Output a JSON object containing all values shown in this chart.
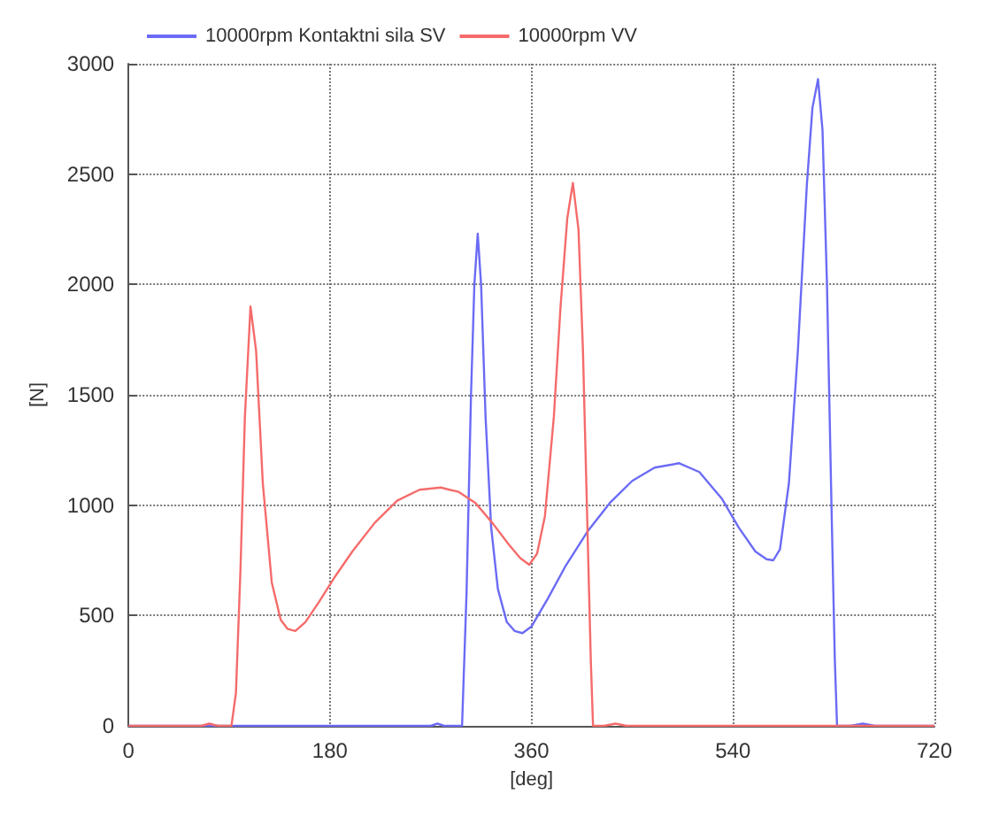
{
  "chart_data": {
    "type": "line",
    "xlabel": "[deg]",
    "ylabel": "[N]",
    "xlim": [
      0,
      720
    ],
    "xticks": [
      0,
      180,
      360,
      540,
      720
    ],
    "ylim": [
      0,
      3000
    ],
    "yticks": [
      0,
      500,
      1000,
      1500,
      2000,
      2500,
      3000
    ],
    "grid": true,
    "legend": "top left",
    "marker": "none",
    "line_style": "solid",
    "series": [
      {
        "name": "10000rpm Kontaktni sila SV",
        "color": "#6b6bf5",
        "x": [
          0,
          270,
          276,
          282,
          298,
          302,
          306,
          309,
          312,
          315,
          319,
          324,
          330,
          338,
          345,
          352,
          360,
          375,
          390,
          410,
          430,
          450,
          470,
          492,
          510,
          530,
          545,
          560,
          570,
          576,
          582,
          590,
          598,
          606,
          611,
          616,
          620,
          624,
          628,
          631,
          633,
          645,
          656,
          667,
          720
        ],
        "values": [
          0,
          0,
          10,
          0,
          0,
          600,
          1500,
          2000,
          2230,
          2000,
          1400,
          900,
          620,
          470,
          430,
          420,
          450,
          580,
          720,
          880,
          1010,
          1110,
          1170,
          1190,
          1150,
          1030,
          900,
          790,
          755,
          750,
          800,
          1100,
          1700,
          2450,
          2800,
          2930,
          2700,
          2000,
          1000,
          300,
          0,
          0,
          10,
          0,
          0
        ]
      },
      {
        "name": "10000rpm VV",
        "color": "#f56b6b",
        "x": [
          0,
          65,
          72,
          80,
          92,
          96,
          100,
          104,
          109,
          114,
          120,
          128,
          136,
          142,
          149,
          158,
          170,
          185,
          200,
          220,
          240,
          260,
          279,
          295,
          310,
          325,
          340,
          350,
          358,
          365,
          372,
          380,
          386,
          392,
          397,
          402,
          406,
          410,
          413,
          415,
          425,
          435,
          445,
          720
        ],
        "values": [
          0,
          0,
          10,
          0,
          0,
          150,
          700,
          1400,
          1900,
          1700,
          1100,
          650,
          480,
          440,
          430,
          470,
          560,
          680,
          790,
          920,
          1020,
          1070,
          1080,
          1060,
          1010,
          920,
          820,
          760,
          730,
          780,
          950,
          1400,
          1900,
          2300,
          2460,
          2250,
          1700,
          900,
          300,
          0,
          0,
          10,
          0,
          0
        ]
      }
    ]
  }
}
